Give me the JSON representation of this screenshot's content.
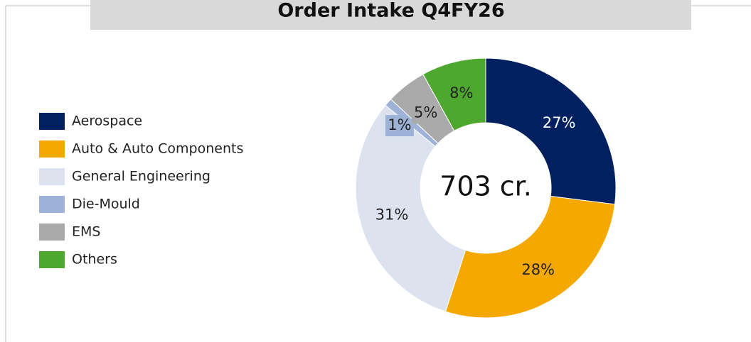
{
  "chart_data": {
    "type": "donut",
    "title": "Order Intake Q4FY26",
    "center_label": "703 cr.",
    "categories": [
      "Aerospace",
      "Auto & Auto Components",
      "General Engineering",
      "Die-Mould",
      "EMS",
      "Others"
    ],
    "values": [
      27,
      28,
      31,
      1,
      5,
      8
    ],
    "value_labels": [
      "27%",
      "28%",
      "31%",
      "1%",
      "5%",
      "8%"
    ],
    "colors": [
      "#002060",
      "#f5a800",
      "#dce3ef",
      "#9db2d6",
      "#aaaaaa",
      "#4ea72e"
    ],
    "legend": "left"
  }
}
